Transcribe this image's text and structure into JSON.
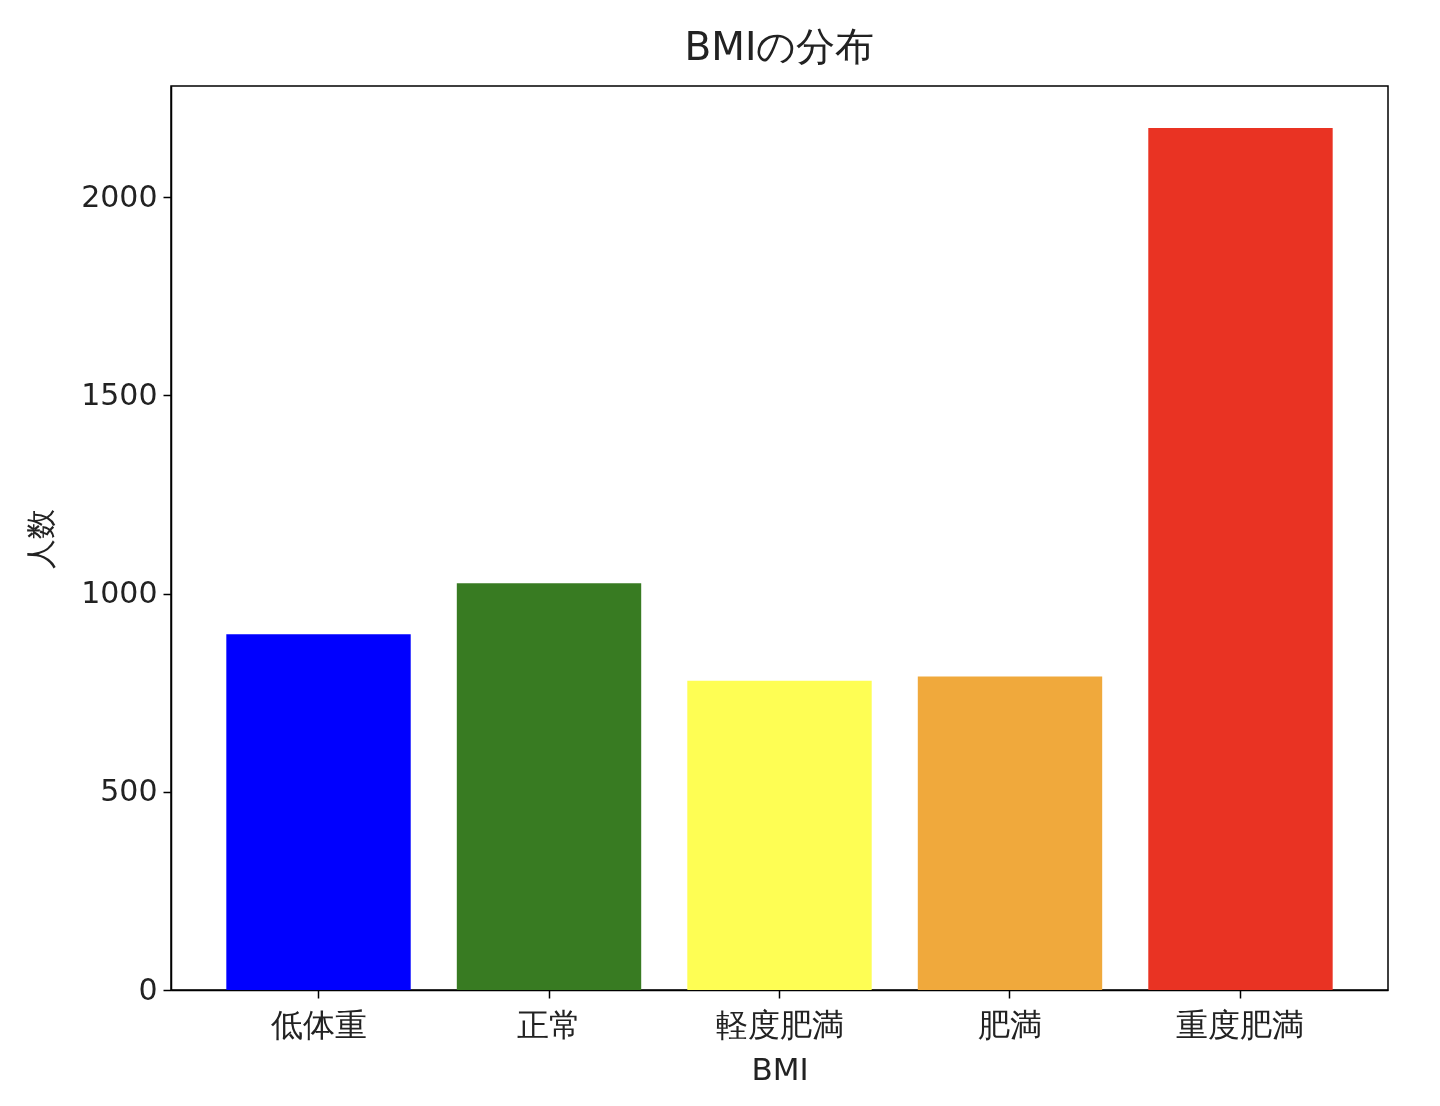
{
  "chart_data": {
    "type": "bar",
    "title": "BMIの分布",
    "xlabel": "BMI",
    "ylabel": "人数",
    "categories": [
      "低体重",
      "正常",
      "軽度肥満",
      "肥満",
      "重度肥満"
    ],
    "values": [
      897,
      1026,
      780,
      791,
      2174
    ],
    "colors": [
      "#0000ff",
      "#387b22",
      "#fefe54",
      "#f0a93c",
      "#e93323"
    ],
    "ylim": [
      0,
      2280
    ],
    "yticks": [
      0,
      500,
      1000,
      1500,
      2000
    ],
    "grid": false
  }
}
